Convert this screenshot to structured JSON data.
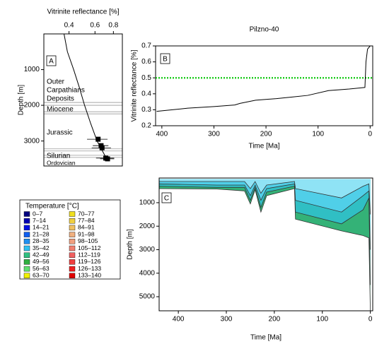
{
  "chart_data": [
    {
      "type": "depth-profile",
      "panel_label": "A",
      "xlabel": "Vitrinite reflectance [%]",
      "ylabel": "Depth [m]",
      "xscale": "log",
      "xlim": [
        0.27,
        0.92
      ],
      "xticks": [
        0.4,
        0.6,
        0.8
      ],
      "ylim": [
        0,
        3700
      ],
      "y_inverted": true,
      "yticks": [
        1000,
        2000,
        3000
      ],
      "depth": [
        0,
        500,
        1000,
        1500,
        2000,
        2500,
        3000,
        3500
      ],
      "values": [
        0.37,
        0.39,
        0.43,
        0.47,
        0.51,
        0.56,
        0.62,
        0.72
      ],
      "measured": {
        "depth": [
          2950,
          3130,
          3190,
          3480,
          3500
        ],
        "values": [
          0.63,
          0.66,
          0.67,
          0.71,
          0.73
        ],
        "errors": [
          0.1,
          0.08,
          0.1,
          0.1,
          0.08
        ]
      },
      "boundaries": [
        1920,
        2000,
        2180,
        2240,
        3220,
        3280,
        3400,
        3460
      ],
      "formations": [
        "Outer",
        "Carpathians",
        "Deposits",
        "Miocene",
        "Jurassic",
        "Silurian",
        "Ordovician"
      ]
    },
    {
      "type": "line",
      "panel_label": "B",
      "title": "Pilzno-40",
      "xlabel": "Time [Ma]",
      "ylabel": "Vitrinite reflectance [%]",
      "xlim": [
        412,
        -5
      ],
      "xticks": [
        400,
        300,
        200,
        100,
        0
      ],
      "ylim": [
        0.2,
        0.7
      ],
      "yticks": [
        0.2,
        0.3,
        0.4,
        0.5,
        0.6,
        0.7
      ],
      "x": [
        410,
        350,
        300,
        260,
        250,
        220,
        180,
        150,
        120,
        80,
        40,
        10,
        8,
        5,
        0
      ],
      "values": [
        0.29,
        0.31,
        0.32,
        0.33,
        0.34,
        0.36,
        0.37,
        0.38,
        0.39,
        0.42,
        0.43,
        0.44,
        0.6,
        0.68,
        0.7
      ],
      "reference_line": 0.5,
      "reference_color": "#22cc22",
      "color": "#000000"
    },
    {
      "type": "burial",
      "panel_label": "C",
      "xlabel": "Time [Ma]",
      "ylabel": "Depth [m]",
      "xlim": [
        440,
        -5
      ],
      "xticks": [
        400,
        300,
        200,
        100,
        0
      ],
      "ylim": [
        -50,
        5600
      ],
      "y_inverted": true,
      "yticks": [
        1000,
        2000,
        3000,
        4000,
        5000
      ],
      "x": [
        440,
        320,
        262,
        250,
        240,
        228,
        216,
        158,
        156,
        60,
        15,
        3,
        0
      ],
      "horizons": [
        {
          "color": "#8fe3f5",
          "values": [
            100,
            100,
            100,
            400,
            100,
            600,
            250,
            100,
            400,
            800,
            300,
            200,
            1500
          ]
        },
        {
          "color": "#50cfe8",
          "values": [
            200,
            250,
            250,
            700,
            250,
            900,
            400,
            200,
            900,
            1400,
            700,
            500,
            3000
          ]
        },
        {
          "color": "#30bfc4",
          "values": [
            300,
            350,
            350,
            900,
            350,
            1200,
            550,
            300,
            1400,
            1900,
            1300,
            800,
            4500
          ]
        },
        {
          "color": "#34b277",
          "values": [
            400,
            420,
            500,
            1050,
            450,
            1400,
            700,
            400,
            1700,
            2200,
            2400,
            2500,
            5600
          ]
        }
      ],
      "legend": {
        "title": "Temperature [°C]",
        "items": [
          {
            "label": "0–7",
            "color": "#00007f"
          },
          {
            "label": "7–14",
            "color": "#0000b0"
          },
          {
            "label": "14–21",
            "color": "#0010e0"
          },
          {
            "label": "21–28",
            "color": "#1060f0"
          },
          {
            "label": "28–35",
            "color": "#2090f0"
          },
          {
            "label": "35–42",
            "color": "#30c0f0"
          },
          {
            "label": "42–49",
            "color": "#30c080"
          },
          {
            "label": "49–56",
            "color": "#30b040"
          },
          {
            "label": "56–63",
            "color": "#60e070"
          },
          {
            "label": "63–70",
            "color": "#f0f000"
          },
          {
            "label": "70–77",
            "color": "#f0e020"
          },
          {
            "label": "77–84",
            "color": "#f0d040"
          },
          {
            "label": "84–91",
            "color": "#f0c060"
          },
          {
            "label": "91–98",
            "color": "#f0b080"
          },
          {
            "label": "98–105",
            "color": "#f0a080"
          },
          {
            "label": "105–112",
            "color": "#f08070"
          },
          {
            "label": "112–119",
            "color": "#f06060"
          },
          {
            "label": "119–126",
            "color": "#f04040"
          },
          {
            "label": "126–133",
            "color": "#f02020"
          },
          {
            "label": "133–140",
            "color": "#e00000"
          }
        ]
      }
    }
  ]
}
